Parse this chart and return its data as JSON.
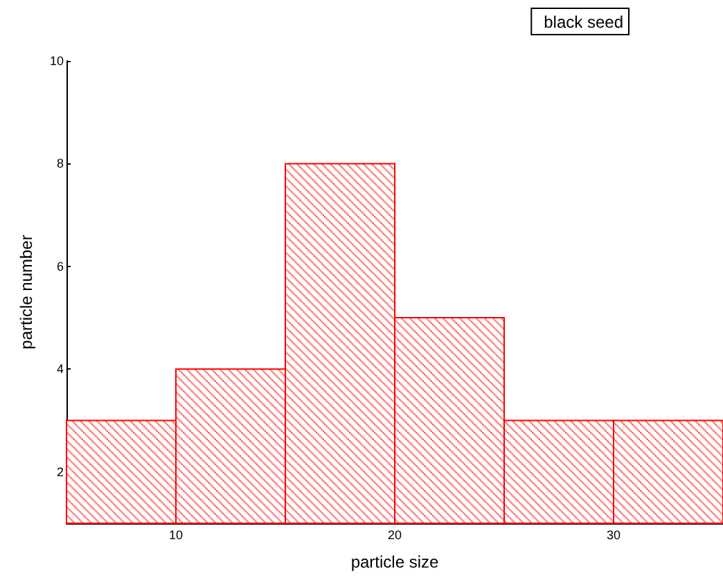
{
  "chart_data": {
    "type": "histogram",
    "xlabel": "particle size",
    "ylabel": "particle number",
    "bins": [
      5,
      10,
      15,
      20,
      25,
      30,
      35
    ],
    "series": [
      {
        "name": "black seed",
        "color": "#ff0000",
        "values": [
          3,
          4,
          8,
          5,
          3,
          3
        ]
      }
    ],
    "xlim": [
      5,
      35
    ],
    "xticks": [
      10,
      20,
      30
    ],
    "ylim": [
      1,
      10
    ],
    "yticks": [
      2,
      4,
      6,
      8,
      10
    ],
    "grid": false,
    "legend": "top right"
  }
}
